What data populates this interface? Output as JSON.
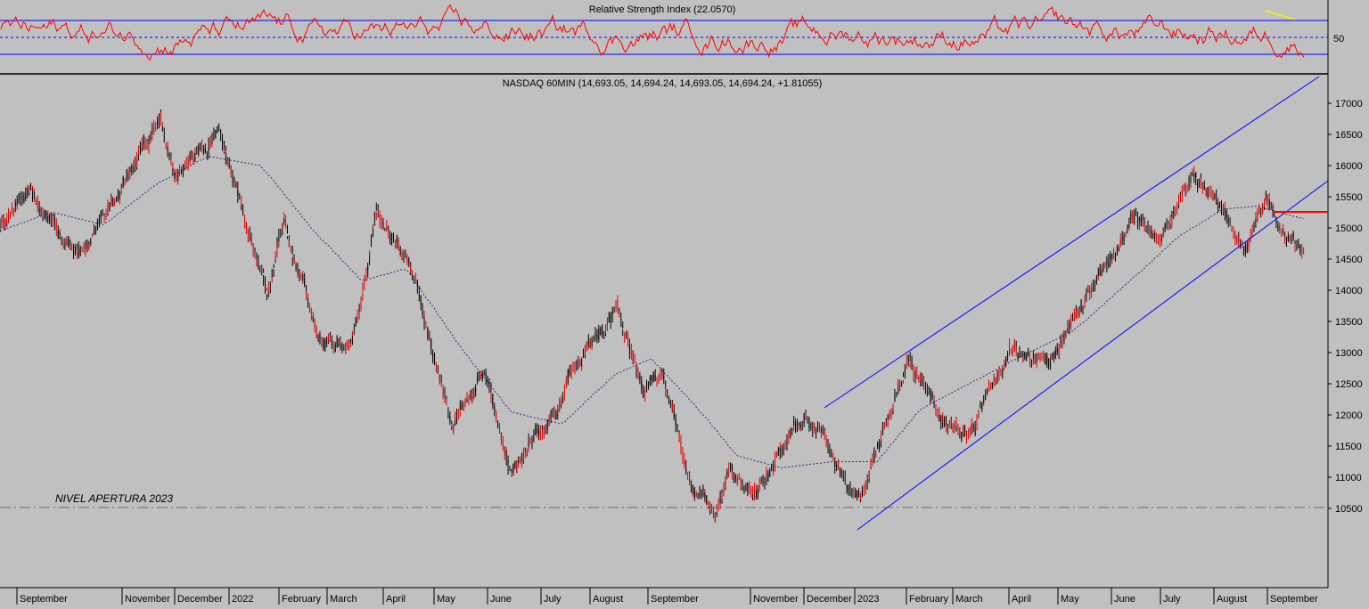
{
  "colors": {
    "background": "#c0c0c0",
    "price_bar": "#000000",
    "price_bar_down": "#e00000",
    "rsi_line": "#ff0000",
    "rsi_bands": "#0000ff",
    "channel_lines": "#0000ff",
    "moving_average": "#3b2a7a",
    "support_line": "#ff0000",
    "reference_line": "#6a6a6a",
    "divergence_line": "#ffee00"
  },
  "rsi_panel": {
    "title": "Relative Strength Index (22.0570)",
    "level_label": "50",
    "upper_band": 70,
    "lower_band": 30,
    "mid_level": 50
  },
  "price_panel": {
    "title": "NASDAQ 60MIN (14,693.05, 14,694.24, 14,693.05, 14,694.24, +1.81055)",
    "annotation": "NIVEL APERTURA 2023",
    "reference_level": 10900,
    "support_level": 15090
  },
  "chart_data": [
    {
      "type": "line",
      "panel": "rsi",
      "title": "Relative Strength Index (22.0570)",
      "ylim": [
        15,
        85
      ],
      "bands": [
        30,
        50,
        70
      ],
      "last_value": 22.057
    },
    {
      "type": "line",
      "panel": "price",
      "title": "NASDAQ 60MIN (14,693.05, 14,694.24, 14,693.05, 14,694.24, +1.81055)",
      "ylim": [
        10000,
        17500
      ],
      "y_ticks": [
        "17000",
        "16500",
        "16000",
        "15500",
        "15000",
        "14500",
        "14000",
        "13500",
        "13000",
        "12500",
        "12000",
        "11500",
        "11000",
        "10500"
      ],
      "x_labels": [
        "September",
        "November",
        "December",
        "2022",
        "February",
        "March",
        "April",
        "May",
        "June",
        "July",
        "August",
        "September",
        "November",
        "December",
        "2023",
        "February",
        "March",
        "April",
        "May",
        "June",
        "July",
        "August",
        "September"
      ],
      "series": [
        {
          "name": "NASDAQ 60MIN",
          "x": [
            "2021-08-20",
            "2021-09-07",
            "2021-10-04",
            "2021-10-20",
            "2021-11-22",
            "2021-12-01",
            "2021-12-27",
            "2022-01-24",
            "2022-02-02",
            "2022-02-24",
            "2022-03-14",
            "2022-03-29",
            "2022-04-20",
            "2022-05-12",
            "2022-05-31",
            "2022-06-16",
            "2022-07-07",
            "2022-07-22",
            "2022-08-16",
            "2022-08-31",
            "2022-09-12",
            "2022-09-30",
            "2022-10-13",
            "2022-10-21",
            "2022-11-04",
            "2022-11-30",
            "2022-12-13",
            "2022-12-28",
            "2023-01-06",
            "2023-02-02",
            "2023-02-24",
            "2023-03-13",
            "2023-04-03",
            "2023-04-25",
            "2023-05-19",
            "2023-06-15",
            "2023-06-30",
            "2023-07-19",
            "2023-08-03",
            "2023-08-18",
            "2023-08-31",
            "2023-09-07",
            "2023-09-21"
          ],
          "values": [
            15000,
            15650,
            14500,
            15150,
            16700,
            15900,
            16550,
            13900,
            15100,
            13100,
            13100,
            15250,
            14200,
            11800,
            12700,
            11050,
            11900,
            12700,
            13700,
            12400,
            12700,
            10750,
            10500,
            11150,
            10750,
            11850,
            11800,
            10800,
            10750,
            12900,
            11900,
            11700,
            13100,
            12800,
            14000,
            15150,
            14750,
            15900,
            15400,
            14600,
            15550,
            15100,
            14694
          ]
        },
        {
          "name": "Moving average",
          "x": [
            "2021-08-20",
            "2021-09-20",
            "2021-10-20",
            "2021-11-20",
            "2021-12-20",
            "2022-01-20",
            "2022-02-20",
            "2022-03-20",
            "2022-04-15",
            "2022-05-15",
            "2022-06-15",
            "2022-07-15",
            "2022-08-15",
            "2022-09-05",
            "2022-10-01",
            "2022-10-25",
            "2022-11-20",
            "2022-12-20",
            "2023-01-15",
            "2023-02-10",
            "2023-03-10",
            "2023-04-10",
            "2023-05-10",
            "2023-06-10",
            "2023-07-10",
            "2023-08-05",
            "2023-08-25",
            "2023-09-21"
          ],
          "values": [
            14950,
            15250,
            15050,
            15700,
            16150,
            16000,
            14950,
            14150,
            14350,
            13150,
            12050,
            11850,
            12650,
            12900,
            12150,
            11350,
            11150,
            11250,
            11250,
            12100,
            12500,
            12950,
            13350,
            14100,
            14850,
            15300,
            15350,
            15150
          ]
        }
      ],
      "trendlines": [
        {
          "name": "Channel upper",
          "x": [
            "2022-12-13",
            "2023-09-29"
          ],
          "values": [
            12180,
            17450
          ]
        },
        {
          "name": "Channel lower",
          "x": [
            "2022-12-28",
            "2023-09-29"
          ],
          "values": [
            10620,
            15600
          ]
        }
      ]
    }
  ]
}
